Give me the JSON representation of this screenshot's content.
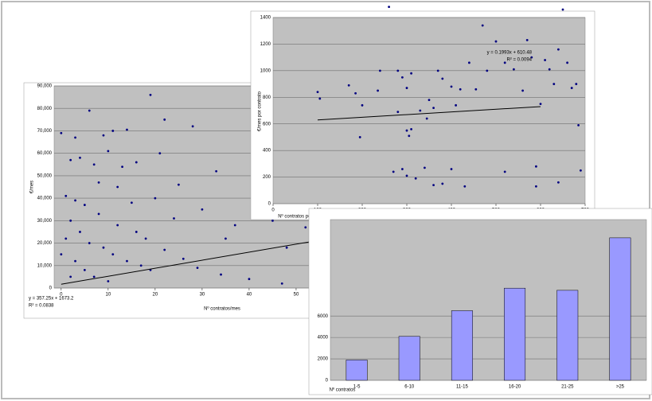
{
  "chart_data": [
    {
      "type": "scatter",
      "x_label": "Nº contratos/mes",
      "y_label": "€/mes",
      "annotation": [
        "y = 357.25x + 1673.2",
        "R² = 0.0838"
      ],
      "color": "#000080",
      "grid": true,
      "xlim": [
        -1.5,
        70
      ],
      "xticks": [
        0,
        10,
        20,
        30,
        40,
        50,
        60,
        70
      ],
      "ylim": [
        0,
        90000
      ],
      "yticks": [
        0,
        {
          "value": 10000,
          "label": "10,000"
        },
        {
          "value": 20000,
          "label": "20,000"
        },
        {
          "value": 30000,
          "label": "30,000"
        },
        {
          "value": 40000,
          "label": "40,000"
        },
        {
          "value": 50000,
          "label": "50,000"
        },
        {
          "value": 60000,
          "label": "60,000"
        },
        {
          "value": 70000,
          "label": "70,000"
        },
        {
          "value": 80000,
          "label": "80,000"
        },
        {
          "value": 90000,
          "label": "90,000"
        }
      ],
      "x": [
        19,
        0,
        6,
        22,
        28,
        11,
        14,
        3,
        9,
        21,
        10,
        2,
        4,
        7,
        13,
        16,
        33,
        25,
        8,
        12,
        1,
        3,
        5,
        15,
        20,
        30,
        41,
        37,
        45,
        52,
        58,
        35,
        48,
        55,
        62,
        66,
        2,
        4,
        6,
        9,
        11,
        14,
        17,
        1,
        3,
        5,
        7,
        10,
        0,
        2,
        18,
        22,
        26,
        29,
        34,
        40,
        47,
        53,
        60,
        66,
        12,
        16,
        8,
        24,
        19
      ],
      "values": [
        86000,
        69000,
        79000,
        75000,
        72000,
        70000,
        70500,
        67000,
        68000,
        60000,
        61000,
        57000,
        58000,
        55000,
        54000,
        56000,
        52000,
        46000,
        47000,
        45000,
        41000,
        39000,
        37000,
        38000,
        40000,
        35000,
        32000,
        28000,
        30000,
        27000,
        26000,
        22000,
        18000,
        15000,
        12000,
        16000,
        30000,
        25000,
        20000,
        18000,
        15000,
        12000,
        10000,
        22000,
        12000,
        8000,
        5000,
        3000,
        15000,
        5000,
        22000,
        17000,
        13000,
        9000,
        6000,
        4000,
        2000,
        3000,
        1000,
        3500,
        28000,
        25000,
        33000,
        31000,
        8000
      ],
      "trendline": {
        "x": [
          0,
          70
        ],
        "y": [
          1673.2,
          26680.7
        ]
      }
    },
    {
      "type": "scatter",
      "x_label": "Nº contratos por gestor",
      "y_label": "€/mes por contrato",
      "annotation": [
        "y = 0.1993x + 610.48",
        "R² = 0.0094"
      ],
      "color": "#000080",
      "grid": true,
      "xlim": [
        0,
        700
      ],
      "xticks": [
        0,
        100,
        200,
        300,
        400,
        500,
        600,
        700
      ],
      "ylim": [
        0,
        1400
      ],
      "yticks": [
        0,
        200,
        400,
        600,
        800,
        1000,
        1200,
        1400
      ],
      "x": [
        100,
        105,
        170,
        185,
        200,
        195,
        235,
        260,
        240,
        280,
        300,
        290,
        310,
        280,
        300,
        305,
        310,
        330,
        360,
        345,
        350,
        370,
        380,
        400,
        410,
        420,
        440,
        455,
        470,
        480,
        500,
        520,
        540,
        560,
        570,
        580,
        600,
        610,
        620,
        640,
        630,
        650,
        660,
        670,
        680,
        685,
        690,
        290,
        270,
        300,
        320,
        340,
        360,
        380,
        400,
        520,
        590,
        640,
        590,
        430
      ],
      "values": [
        840,
        790,
        890,
        830,
        740,
        500,
        850,
        1480,
        1000,
        1000,
        870,
        950,
        980,
        690,
        550,
        510,
        560,
        700,
        720,
        640,
        780,
        1000,
        940,
        880,
        740,
        860,
        1060,
        860,
        1340,
        1000,
        1220,
        1060,
        1010,
        850,
        1230,
        1100,
        750,
        1080,
        1010,
        1160,
        900,
        1460,
        1060,
        870,
        900,
        590,
        250,
        260,
        240,
        210,
        190,
        270,
        140,
        150,
        260,
        240,
        280,
        160,
        130,
        130
      ],
      "trendline": {
        "x": [
          100,
          600
        ],
        "y": [
          630,
          730
        ]
      }
    },
    {
      "type": "bar",
      "x_label": "Nº contratos",
      "color": "#9999ff",
      "grid": true,
      "categories": [
        "1-5",
        "6-10",
        "11-15",
        "16-20",
        "21-25",
        ">25"
      ],
      "values": [
        1900,
        4100,
        6500,
        8600,
        8400,
        13300
      ],
      "ylim": [
        0,
        15000
      ],
      "yticks": [
        0,
        2000,
        4000,
        6000
      ]
    }
  ]
}
